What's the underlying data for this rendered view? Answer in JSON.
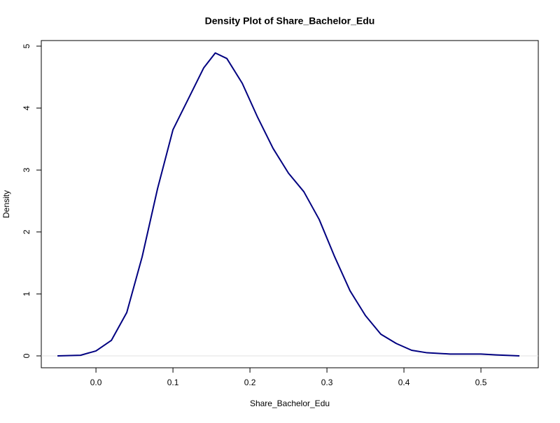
{
  "chart_data": {
    "type": "line",
    "title": "Density Plot of Share_Bachelor_Edu",
    "x_label": "Share_Bachelor_Edu",
    "y_label": "Density",
    "x": [
      -0.05,
      -0.02,
      0.0,
      0.02,
      0.04,
      0.06,
      0.08,
      0.1,
      0.12,
      0.14,
      0.155,
      0.17,
      0.19,
      0.21,
      0.23,
      0.25,
      0.27,
      0.29,
      0.31,
      0.33,
      0.35,
      0.37,
      0.39,
      0.41,
      0.43,
      0.46,
      0.5,
      0.52,
      0.55
    ],
    "series": [
      {
        "name": "density",
        "color": "#000080",
        "values": [
          0.0,
          0.01,
          0.08,
          0.25,
          0.7,
          1.6,
          2.7,
          3.65,
          4.15,
          4.65,
          4.89,
          4.8,
          4.4,
          3.85,
          3.35,
          2.95,
          2.65,
          2.2,
          1.6,
          1.05,
          0.65,
          0.35,
          0.2,
          0.09,
          0.05,
          0.03,
          0.03,
          0.015,
          0.0
        ]
      }
    ],
    "xlim": [
      -0.071,
      0.5745
    ],
    "ylim": [
      -0.192,
      5.09
    ],
    "xticks": [
      {
        "value": 0,
        "label": "0.0"
      },
      {
        "value": 0.1,
        "label": "0.1"
      },
      {
        "value": 0.2,
        "label": "0.2"
      },
      {
        "value": 0.3,
        "label": "0.3"
      },
      {
        "value": 0.4,
        "label": "0.4"
      },
      {
        "value": 0.5,
        "label": "0.5"
      }
    ],
    "yticks": [
      0,
      1,
      2,
      3,
      4,
      5
    ],
    "zero_line": true
  }
}
